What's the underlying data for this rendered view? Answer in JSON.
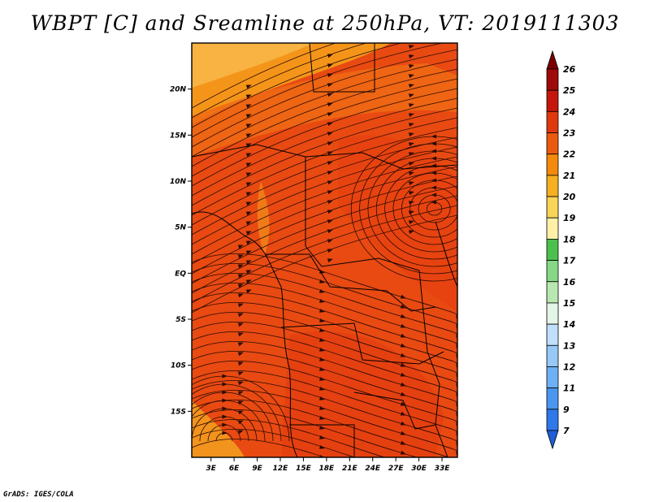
{
  "title": "WBPT [C] and Sreamline at 250hPa, VT: 2019111303",
  "credit": "GrADS: IGES/COLA",
  "colors": {
    "background": "#e84a12",
    "frame": "#000000"
  },
  "chart_data": {
    "type": "heatmap",
    "title": "WBPT [C] and Sreamline at 250hPa, VT: 2019111303",
    "variable": "WBPT [C]",
    "level": "250hPa",
    "valid_time": "2019111303",
    "overlay": "streamlines",
    "x_ticks": [
      "3E",
      "6E",
      "9E",
      "12E",
      "15E",
      "18E",
      "21E",
      "24E",
      "27E",
      "30E",
      "33E"
    ],
    "x_tick_values": [
      3,
      6,
      9,
      12,
      15,
      18,
      21,
      24,
      27,
      30,
      33
    ],
    "y_ticks": [
      "20N",
      "15N",
      "10N",
      "5N",
      "EQ",
      "5S",
      "10S",
      "15S"
    ],
    "y_tick_values": [
      20,
      15,
      10,
      5,
      0,
      -5,
      -10,
      -15
    ],
    "xlim": [
      0.5,
      35
    ],
    "ylim": [
      -20,
      25
    ],
    "colorbar": {
      "labels": [
        "7",
        "9",
        "11",
        "12",
        "13",
        "14",
        "15",
        "16",
        "17",
        "18",
        "19",
        "20",
        "21",
        "22",
        "23",
        "24",
        "25",
        "26"
      ],
      "colors": [
        "#1f5fd6",
        "#2e78e8",
        "#4a96f0",
        "#6db0f5",
        "#96c8f8",
        "#bfdffb",
        "#e4f4e6",
        "#b8e8b0",
        "#86d886",
        "#4cc04c",
        "#fff0a8",
        "#f8d458",
        "#f6b020",
        "#f48a0c",
        "#ec5a10",
        "#e0380e",
        "#c4160c",
        "#a00a0a",
        "#7a0000"
      ],
      "extend": "both"
    },
    "field_range": [
      20,
      24
    ],
    "dominant_value": 24
  }
}
